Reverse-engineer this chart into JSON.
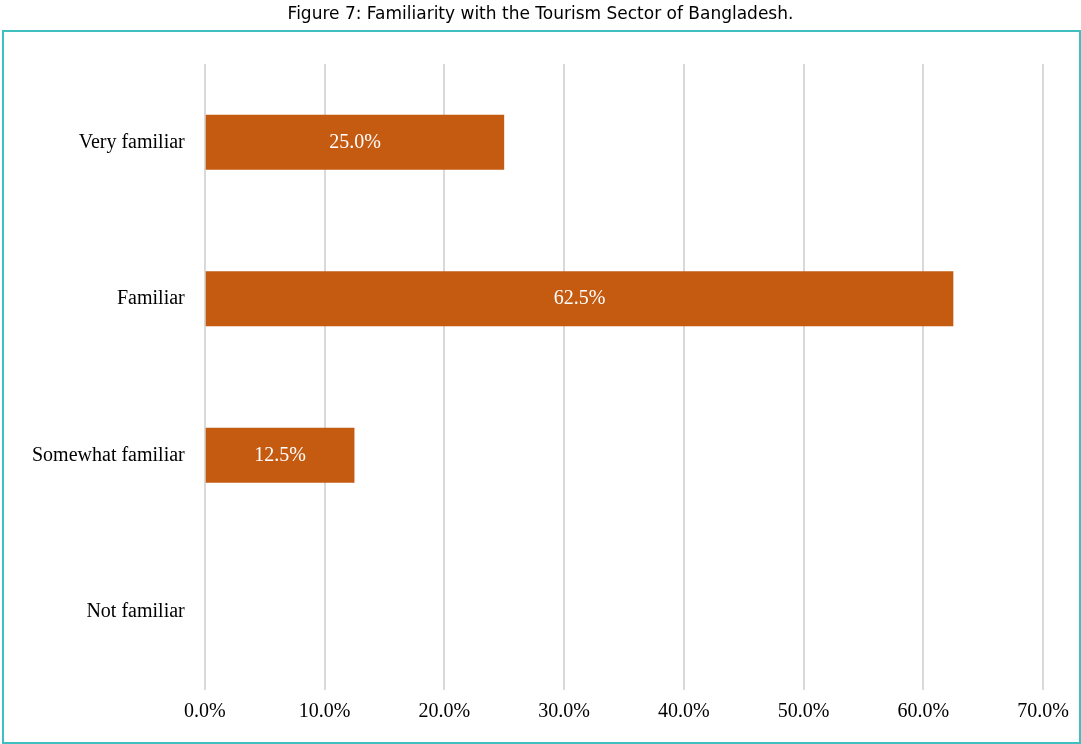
{
  "chart_data": {
    "type": "bar",
    "orientation": "horizontal",
    "title": "Figure 7: Familiarity with the Tourism Sector of Bangladesh.",
    "categories": [
      "Very familiar",
      "Familiar",
      "Somewhat familiar",
      "Not familiar"
    ],
    "values": [
      25,
      62.5,
      12.5,
      0
    ],
    "value_labels": [
      "25.0%",
      "62.5%",
      "12.5%",
      null
    ],
    "color": "#c55a11",
    "xlim": [
      0,
      70
    ],
    "xticks": [
      {
        "value": 0,
        "label": "0.0%"
      },
      {
        "value": 10,
        "label": "10.0%"
      },
      {
        "value": 20,
        "label": "20.0%"
      },
      {
        "value": 30,
        "label": "30.0%"
      },
      {
        "value": 40,
        "label": "40.0%"
      },
      {
        "value": 50,
        "label": "50.0%"
      },
      {
        "value": 60,
        "label": "60.0%"
      },
      {
        "value": 70,
        "label": "70.0%"
      }
    ],
    "grid": "x",
    "legend": false
  }
}
